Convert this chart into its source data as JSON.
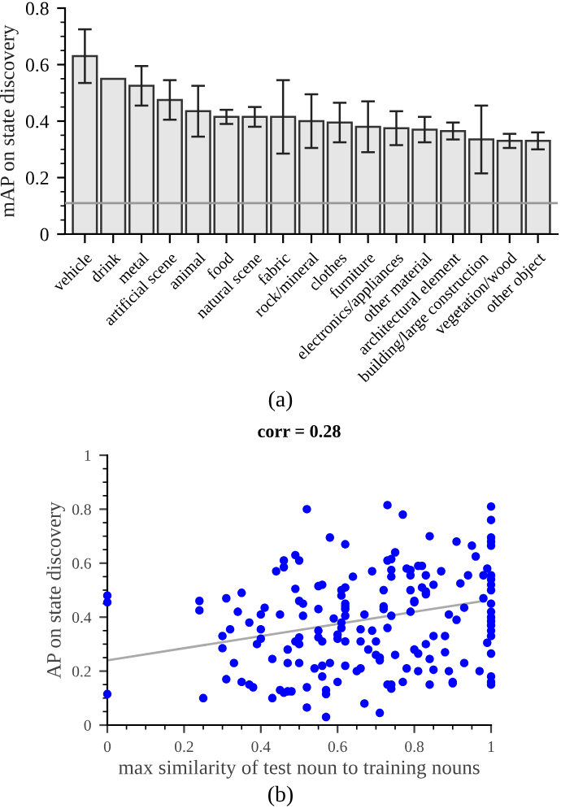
{
  "chart_data": [
    {
      "type": "bar",
      "ylabel": "mAP on state discovery",
      "categories": [
        "vehicle",
        "drink",
        "metal",
        "artificial scene",
        "animal",
        "food",
        "natural scene",
        "fabric",
        "rock/mineral",
        "clothes",
        "furniture",
        "electronics/appliances",
        "other material",
        "architectural element",
        "building/large construction",
        "vegetation/wood",
        "other object"
      ],
      "values": [
        0.63,
        0.55,
        0.525,
        0.475,
        0.435,
        0.415,
        0.415,
        0.415,
        0.4,
        0.395,
        0.38,
        0.375,
        0.37,
        0.365,
        0.335,
        0.33,
        0.33
      ],
      "errors": [
        0.095,
        null,
        0.07,
        0.07,
        0.09,
        0.025,
        0.035,
        0.13,
        0.095,
        0.07,
        0.09,
        0.06,
        0.045,
        0.03,
        0.12,
        0.025,
        0.03
      ],
      "color": "#e6e6e6",
      "ylim": [
        0,
        0.8
      ],
      "yticks": [
        0,
        0.2,
        0.4,
        0.6,
        0.8
      ],
      "ref_lines": [
        {
          "axis": "y",
          "value": 0.11,
          "color": "#999999"
        }
      ],
      "grid": false,
      "annotations": [
        "(a)"
      ]
    },
    {
      "type": "scatter",
      "title": "corr = 0.28",
      "xlabel": "max similarity of test noun to training nouns",
      "ylabel": "AP on state discovery",
      "xlim": [
        0,
        1
      ],
      "xticks": [
        0,
        0.2,
        0.4,
        0.6,
        0.8,
        1
      ],
      "ylim": [
        0,
        1
      ],
      "yticks": [
        0,
        0.2,
        0.4,
        0.6,
        0.8,
        1
      ],
      "grid": false,
      "marker": "circle",
      "series": [
        {
          "color": "#0000ff",
          "x": [
            0,
            0,
            0,
            0.24,
            0.24,
            0.25,
            0.3,
            0.3,
            0.31,
            0.31,
            0.32,
            0.33,
            0.34,
            0.35,
            0.35,
            0.37,
            0.38,
            0.37,
            0.39,
            0.4,
            0.4,
            0.4,
            0.41,
            0.43,
            0.43,
            0.44,
            0.45,
            0.45,
            0.46,
            0.47,
            0.46,
            0.46,
            0.47,
            0.47,
            0.48,
            0.49,
            0.49,
            0.5,
            0.49,
            0.5,
            0.5,
            0.5,
            0.5,
            0.51,
            0.51,
            0.52,
            0.52,
            0.52,
            0.54,
            0.55,
            0.55,
            0.55,
            0.55,
            0.56,
            0.56,
            0.56,
            0.56,
            0.57,
            0.57,
            0.57,
            0.58,
            0.58,
            0.59,
            0.6,
            0.6,
            0.6,
            0.61,
            0.61,
            0.61,
            0.61,
            0.62,
            0.62,
            0.62,
            0.62,
            0.62,
            0.62,
            0.62,
            0.62,
            0.64,
            0.65,
            0.66,
            0.66,
            0.66,
            0.67,
            0.67,
            0.68,
            0.69,
            0.69,
            0.7,
            0.7,
            0.71,
            0.71,
            0.71,
            0.72,
            0.72,
            0.72,
            0.73,
            0.73,
            0.73,
            0.73,
            0.74,
            0.74,
            0.74,
            0.74,
            0.74,
            0.74,
            0.75,
            0.75,
            0.77,
            0.77,
            0.78,
            0.78,
            0.79,
            0.79,
            0.79,
            0.79,
            0.8,
            0.8,
            0.8,
            0.81,
            0.81,
            0.81,
            0.82,
            0.82,
            0.83,
            0.83,
            0.83,
            0.83,
            0.84,
            0.84,
            0.84,
            0.85,
            0.85,
            0.85,
            0.87,
            0.88,
            0.88,
            0.89,
            0.89,
            0.9,
            0.9,
            0.91,
            0.91,
            0.92,
            0.93,
            0.93,
            0.94,
            0.95,
            0.96,
            0.97,
            0.98,
            0.98,
            0.99,
            0.99,
            1,
            1,
            1,
            1,
            1,
            1,
            1,
            1,
            1,
            1,
            1,
            1,
            1,
            1,
            1,
            1,
            1,
            1,
            1,
            1
          ],
          "values": [
            0.48,
            0.455,
            0.115,
            0.46,
            0.425,
            0.1,
            0.33,
            0.285,
            0.17,
            0.47,
            0.355,
            0.23,
            0.42,
            0.16,
            0.49,
            0.15,
            0.14,
            0.38,
            0.3,
            0.32,
            0.355,
            0.41,
            0.435,
            0.245,
            0.1,
            0.57,
            0.41,
            0.13,
            0.12,
            0.125,
            0.61,
            0.585,
            0.28,
            0.23,
            0.125,
            0.505,
            0.63,
            0.61,
            0.31,
            0.3,
            0.325,
            0.23,
            0.46,
            0.45,
            0.405,
            0.14,
            0.065,
            0.8,
            0.21,
            0.43,
            0.35,
            0.325,
            0.515,
            0.52,
            0.18,
            0.22,
            0.31,
            0.13,
            0.115,
            0.03,
            0.695,
            0.23,
            0.395,
            0.335,
            0.32,
            0.16,
            0.5,
            0.48,
            0.36,
            0.38,
            0.51,
            0.45,
            0.43,
            0.44,
            0.67,
            0.22,
            0.31,
            0.405,
            0.55,
            0.2,
            0.21,
            0.31,
            0.355,
            0.08,
            0.41,
            0.28,
            0.35,
            0.57,
            0.26,
            0.31,
            0.045,
            0.25,
            0.24,
            0.5,
            0.44,
            0.43,
            0.61,
            0.815,
            0.36,
            0.15,
            0.15,
            0.135,
            0.55,
            0.575,
            0.405,
            0.615,
            0.64,
            0.26,
            0.78,
            0.16,
            0.58,
            0.21,
            0.42,
            0.555,
            0.575,
            0.5,
            0.46,
            0.28,
            0.455,
            0.59,
            0.265,
            0.2,
            0.59,
            0.51,
            0.495,
            0.3,
            0.485,
            0.555,
            0.245,
            0.7,
            0.15,
            0.33,
            0.52,
            0.205,
            0.57,
            0.33,
            0.27,
            0.41,
            0.2,
            0.155,
            0.16,
            0.39,
            0.68,
            0.525,
            0.435,
            0.23,
            0.555,
            0.665,
            0.625,
            0.2,
            0.555,
            0.47,
            0.58,
            0.305,
            0.81,
            0.76,
            0.695,
            0.68,
            0.665,
            0.555,
            0.54,
            0.52,
            0.5,
            0.45,
            0.42,
            0.4,
            0.385,
            0.37,
            0.35,
            0.33,
            0.265,
            0.18,
            0.16,
            0.15
          ]
        },
        {
          "type": "line",
          "color": "#aaaaaa",
          "marker": "none",
          "x": [
            0,
            0.98
          ],
          "values": [
            0.24,
            0.46
          ]
        }
      ],
      "annotations": [
        "(b)"
      ]
    }
  ]
}
